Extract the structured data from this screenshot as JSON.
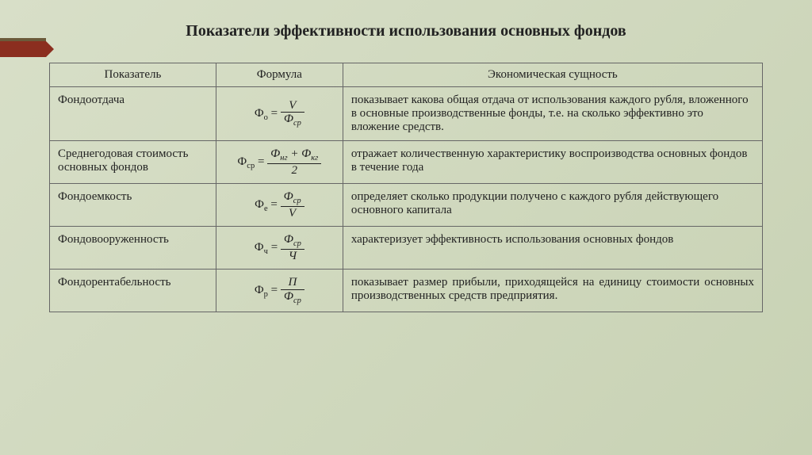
{
  "title": "Показатели эффективности использования основных фондов",
  "headers": {
    "indicator": "Показатель",
    "formula": "Формула",
    "essence": "Экономическая сущность"
  },
  "rows": [
    {
      "indicator": "Фондоотдача",
      "formula": {
        "lhs_base": "Ф",
        "lhs_sub": "о",
        "num": "V",
        "den_base": "Ф",
        "den_sub": "ср"
      },
      "essence": "показывает какова общая отдача от использования каждого рубля, вложенного в основные производственные фонды, т.е. на сколько эффективно это вложение средств."
    },
    {
      "indicator": "Среднегодовая стоимость основных фондов",
      "formula": {
        "lhs_base": "Ф",
        "lhs_sub": "ср",
        "num_parts": [
          [
            "Ф",
            "нг"
          ],
          [
            "Ф",
            "кг"
          ]
        ],
        "den_plain": "2"
      },
      "essence": "отражает количественную характеристику воспроизводства основных фондов в течение года"
    },
    {
      "indicator": "Фондоемкость",
      "formula": {
        "lhs_base": "Ф",
        "lhs_sub": "е",
        "num_base": "Ф",
        "num_sub": "ср",
        "den_plain": "V"
      },
      "essence": "определяет сколько продукции получено с каждого рубля действующего основного капитала"
    },
    {
      "indicator": "Фондовооруженность",
      "formula": {
        "lhs_base": "Ф",
        "lhs_sub": "ч",
        "num_base": "Ф",
        "num_sub": "ср",
        "den_plain": "Ч"
      },
      "essence": "характеризует эффективность использования основных фондов"
    },
    {
      "indicator": "Фондорентабельность",
      "formula": {
        "lhs_base": "Ф",
        "lhs_sub": "р",
        "num": "П",
        "den_base": "Ф",
        "den_sub": "ср"
      },
      "essence": "показывает размер прибыли, приходящейся на единицу стоимости основных производственных средств предприятия.",
      "justify": true
    }
  ],
  "colors": {
    "accent": "#8b2e1f",
    "accent_top": "#6b5a3a",
    "border": "#666",
    "text": "#222",
    "bg_from": "#d8dfc8",
    "bg_to": "#c8d2b4"
  }
}
